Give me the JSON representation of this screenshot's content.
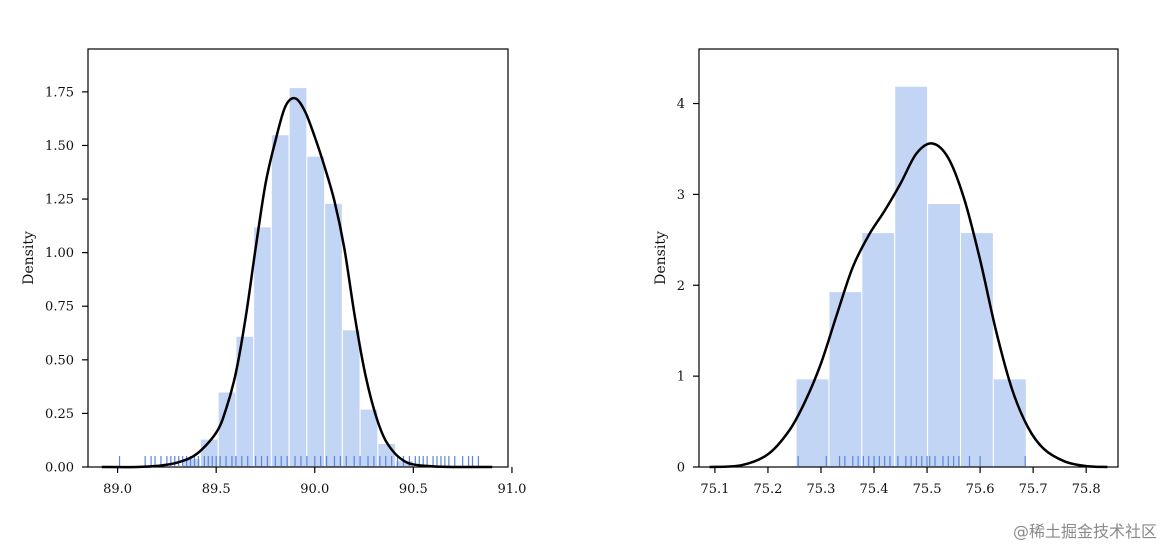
{
  "watermark": "@稀土掘金技术社区",
  "colors": {
    "hist": "#c3d5f5",
    "hist_edge": "#ffffff",
    "kde": "#000000",
    "rug": "#5a85e3",
    "axis": "#000000"
  },
  "chart_data": [
    {
      "type": "histogram+kde+rug",
      "ylabel": "Density",
      "xlabel": "",
      "xlim": [
        88.85,
        90.98
      ],
      "ylim": [
        0,
        1.95
      ],
      "xticks": [
        89.0,
        89.5,
        90.0,
        90.5,
        91.0
      ],
      "xtick_labels": [
        "89.0",
        "89.5",
        "90.0",
        "90.5",
        "91.0"
      ],
      "yticks": [
        0.0,
        0.25,
        0.5,
        0.75,
        1.0,
        1.25,
        1.5,
        1.75
      ],
      "ytick_labels": [
        "0.00",
        "0.25",
        "0.50",
        "0.75",
        "1.00",
        "1.25",
        "1.50",
        "1.75"
      ],
      "bins": [
        {
          "x0": 89.33,
          "x1": 89.42,
          "h": 0.04
        },
        {
          "x0": 89.42,
          "x1": 89.51,
          "h": 0.13
        },
        {
          "x0": 89.51,
          "x1": 89.6,
          "h": 0.35
        },
        {
          "x0": 89.6,
          "x1": 89.69,
          "h": 0.61
        },
        {
          "x0": 89.69,
          "x1": 89.78,
          "h": 1.12
        },
        {
          "x0": 89.78,
          "x1": 89.87,
          "h": 1.55
        },
        {
          "x0": 89.87,
          "x1": 89.96,
          "h": 1.77
        },
        {
          "x0": 89.96,
          "x1": 90.05,
          "h": 1.45
        },
        {
          "x0": 90.05,
          "x1": 90.14,
          "h": 1.23
        },
        {
          "x0": 90.14,
          "x1": 90.23,
          "h": 0.64
        },
        {
          "x0": 90.23,
          "x1": 90.32,
          "h": 0.27
        },
        {
          "x0": 90.32,
          "x1": 90.41,
          "h": 0.11
        },
        {
          "x0": 90.41,
          "x1": 90.5,
          "h": 0.03
        }
      ],
      "kde": {
        "x": [
          88.92,
          89.1,
          89.2,
          89.3,
          89.4,
          89.5,
          89.55,
          89.6,
          89.65,
          89.7,
          89.75,
          89.8,
          89.85,
          89.9,
          89.95,
          90.0,
          90.05,
          90.1,
          90.15,
          90.2,
          90.25,
          90.3,
          90.35,
          90.4,
          90.45,
          90.5,
          90.6,
          90.7,
          90.8,
          90.9
        ],
        "y": [
          0.0,
          0.0,
          0.005,
          0.02,
          0.06,
          0.16,
          0.27,
          0.44,
          0.7,
          1.02,
          1.32,
          1.52,
          1.68,
          1.72,
          1.66,
          1.54,
          1.4,
          1.24,
          1.02,
          0.72,
          0.46,
          0.27,
          0.14,
          0.07,
          0.03,
          0.012,
          0.003,
          0.0,
          0.0,
          0.0
        ]
      },
      "rug": [
        89.01,
        89.14,
        89.17,
        89.19,
        89.22,
        89.25,
        89.27,
        89.29,
        89.31,
        89.33,
        89.35,
        89.37,
        89.39,
        89.41,
        89.44,
        89.46,
        89.48,
        89.5,
        89.52,
        89.55,
        89.58,
        89.6,
        89.63,
        89.66,
        89.7,
        89.73,
        89.76,
        89.8,
        89.83,
        89.86,
        89.9,
        89.93,
        89.96,
        90.0,
        90.03,
        90.06,
        90.1,
        90.13,
        90.16,
        90.2,
        90.23,
        90.27,
        90.3,
        90.33,
        90.36,
        90.39,
        90.42,
        90.45,
        90.48,
        90.51,
        90.53,
        90.55,
        90.57,
        90.6,
        90.62,
        90.64,
        90.66,
        90.68,
        90.71,
        90.75,
        90.78,
        90.8,
        90.83
      ]
    },
    {
      "type": "histogram+kde+rug",
      "ylabel": "Density",
      "xlabel": "",
      "xlim": [
        75.07,
        75.86
      ],
      "ylim": [
        0,
        4.6
      ],
      "xticks": [
        75.1,
        75.2,
        75.3,
        75.4,
        75.5,
        75.6,
        75.7,
        75.8
      ],
      "xtick_labels": [
        "75.1",
        "75.2",
        "75.3",
        "75.4",
        "75.5",
        "75.6",
        "75.7",
        "75.8"
      ],
      "yticks": [
        0,
        1,
        2,
        3,
        4
      ],
      "ytick_labels": [
        "0",
        "1",
        "2",
        "3",
        "4"
      ],
      "bins": [
        {
          "x0": 75.253,
          "x1": 75.315,
          "h": 0.97
        },
        {
          "x0": 75.315,
          "x1": 75.377,
          "h": 1.93
        },
        {
          "x0": 75.377,
          "x1": 75.439,
          "h": 2.58
        },
        {
          "x0": 75.439,
          "x1": 75.501,
          "h": 4.19
        },
        {
          "x0": 75.501,
          "x1": 75.563,
          "h": 2.9
        },
        {
          "x0": 75.563,
          "x1": 75.625,
          "h": 2.58
        },
        {
          "x0": 75.625,
          "x1": 75.687,
          "h": 0.97
        }
      ],
      "kde": {
        "x": [
          75.09,
          75.15,
          75.2,
          75.24,
          75.27,
          75.3,
          75.33,
          75.36,
          75.39,
          75.42,
          75.45,
          75.48,
          75.51,
          75.54,
          75.57,
          75.6,
          75.63,
          75.66,
          75.69,
          75.72,
          75.76,
          75.8,
          75.84
        ],
        "y": [
          0.0,
          0.02,
          0.14,
          0.4,
          0.72,
          1.14,
          1.68,
          2.2,
          2.55,
          2.82,
          3.12,
          3.45,
          3.56,
          3.4,
          2.95,
          2.28,
          1.5,
          0.86,
          0.44,
          0.2,
          0.06,
          0.01,
          0.0
        ]
      },
      "rug": [
        75.257,
        75.31,
        75.335,
        75.345,
        75.36,
        75.37,
        75.38,
        75.39,
        75.4,
        75.41,
        75.42,
        75.43,
        75.445,
        75.46,
        75.47,
        75.48,
        75.49,
        75.5,
        75.505,
        75.515,
        75.53,
        75.54,
        75.55,
        75.56,
        75.58,
        75.6,
        75.685
      ]
    }
  ]
}
